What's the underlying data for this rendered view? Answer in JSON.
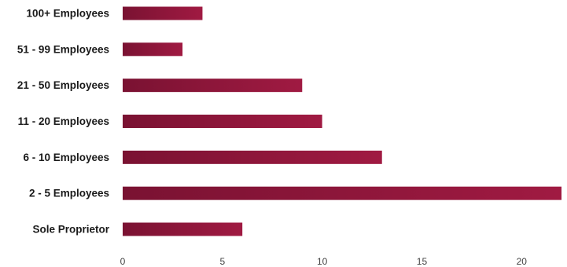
{
  "chart_data": {
    "type": "bar",
    "orientation": "horizontal",
    "categories": [
      "100+ Employees",
      "51 - 99 Employees",
      "21 - 50 Employees",
      "11 - 20 Employees",
      "6 - 10 Employees",
      "2 - 5 Employees",
      "Sole Proprietor"
    ],
    "values": [
      4,
      3,
      9,
      10,
      13,
      22,
      6
    ],
    "xlim": [
      0,
      22
    ],
    "xticks": [
      0,
      5,
      10,
      15,
      20
    ],
    "grid": false,
    "bar_color": "#8a1538",
    "title": "",
    "xlabel": "",
    "ylabel": ""
  }
}
